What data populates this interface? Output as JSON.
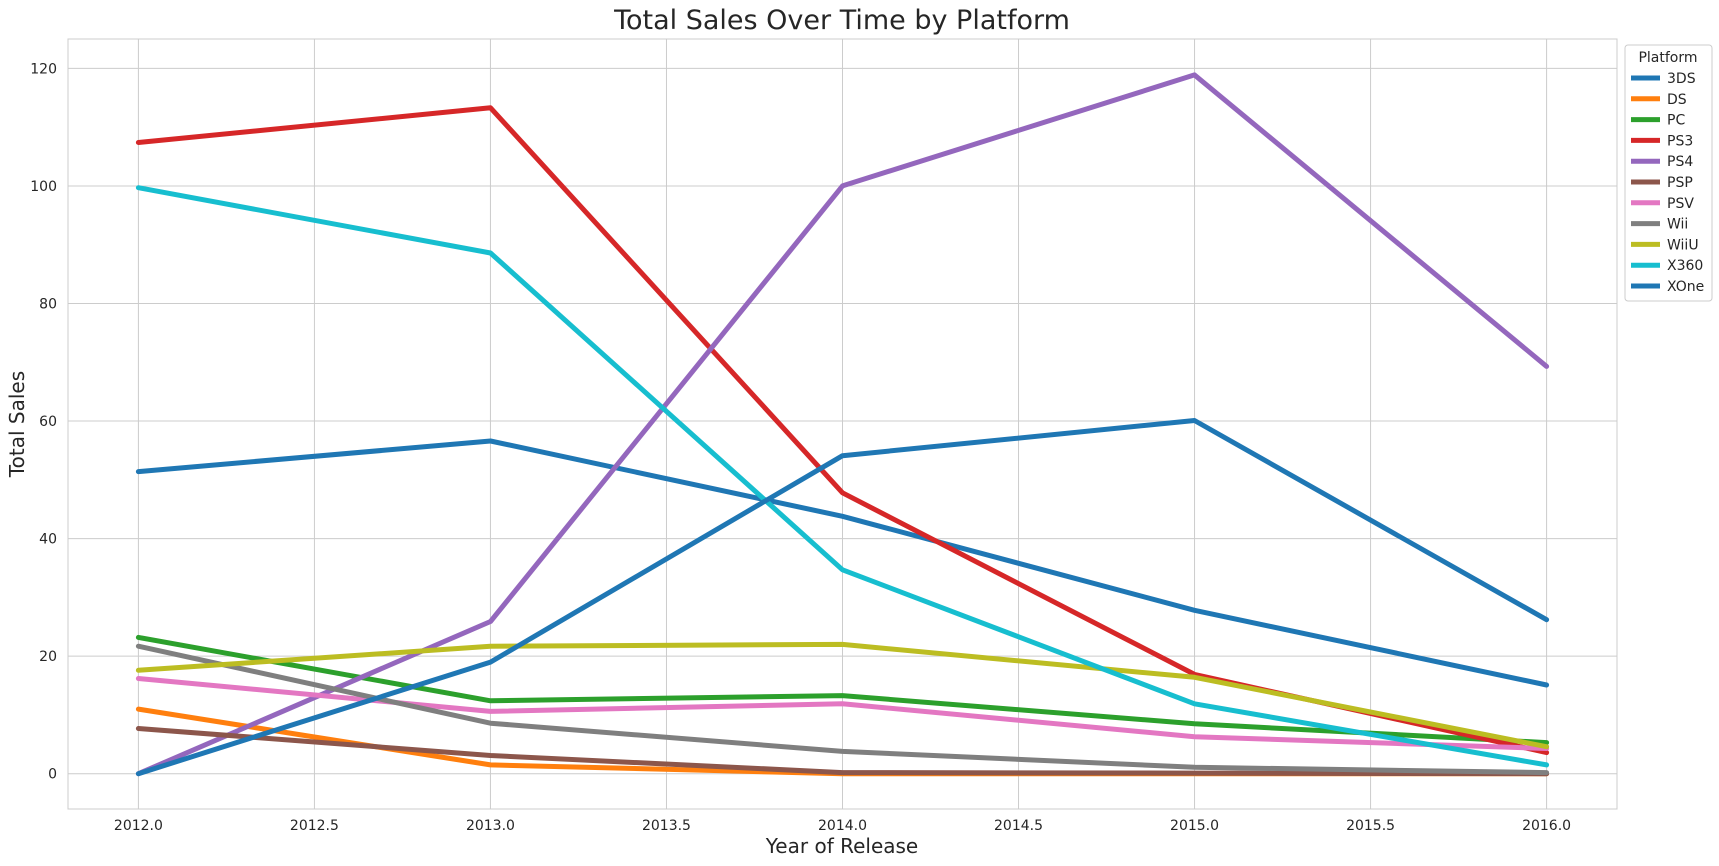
{
  "chart_data": {
    "type": "line",
    "title": "Total Sales Over Time by Platform",
    "xlabel": "Year of Release",
    "ylabel": "Total Sales",
    "xlim": [
      2011.8,
      2016.2
    ],
    "ylim": [
      -6,
      125
    ],
    "xticks": [
      "2012.0",
      "2012.5",
      "2013.0",
      "2013.5",
      "2014.0",
      "2014.5",
      "2015.0",
      "2015.5",
      "2016.0"
    ],
    "xtick_values": [
      2012.0,
      2012.5,
      2013.0,
      2013.5,
      2014.0,
      2014.5,
      2015.0,
      2015.5,
      2016.0
    ],
    "yticks": [
      "0",
      "20",
      "40",
      "60",
      "80",
      "100",
      "120"
    ],
    "ytick_values": [
      0,
      20,
      40,
      60,
      80,
      100,
      120
    ],
    "grid": true,
    "legend_title": "Platform",
    "legend_position": "outside-top-right",
    "x": [
      2012,
      2013,
      2014,
      2015,
      2016
    ],
    "series": [
      {
        "name": "3DS",
        "color": "#1f77b4",
        "values": [
          51.4,
          56.6,
          43.8,
          27.8,
          15.1
        ]
      },
      {
        "name": "DS",
        "color": "#ff7f0e",
        "values": [
          11.0,
          1.5,
          0.0,
          0.0,
          0.0
        ]
      },
      {
        "name": "PC",
        "color": "#2ca02c",
        "values": [
          23.2,
          12.4,
          13.3,
          8.5,
          5.3
        ]
      },
      {
        "name": "PS3",
        "color": "#d62728",
        "values": [
          107.4,
          113.3,
          47.8,
          16.9,
          3.6
        ]
      },
      {
        "name": "PS4",
        "color": "#9467bd",
        "values": [
          0.0,
          25.9,
          100.0,
          118.9,
          69.3
        ]
      },
      {
        "name": "PSP",
        "color": "#8c564b",
        "values": [
          7.7,
          3.1,
          0.2,
          0.1,
          0.0
        ]
      },
      {
        "name": "PSV",
        "color": "#e377c2",
        "values": [
          16.2,
          10.6,
          11.9,
          6.3,
          4.3
        ]
      },
      {
        "name": "Wii",
        "color": "#7f7f7f",
        "values": [
          21.7,
          8.6,
          3.8,
          1.1,
          0.2
        ]
      },
      {
        "name": "WiiU",
        "color": "#bcbd22",
        "values": [
          17.6,
          21.7,
          22.0,
          16.4,
          4.6
        ]
      },
      {
        "name": "X360",
        "color": "#17becf",
        "values": [
          99.7,
          88.6,
          34.7,
          11.9,
          1.5
        ]
      },
      {
        "name": "XOne",
        "color": "#1f77b4",
        "values": [
          0.0,
          19.0,
          54.1,
          60.1,
          26.2
        ]
      }
    ]
  }
}
